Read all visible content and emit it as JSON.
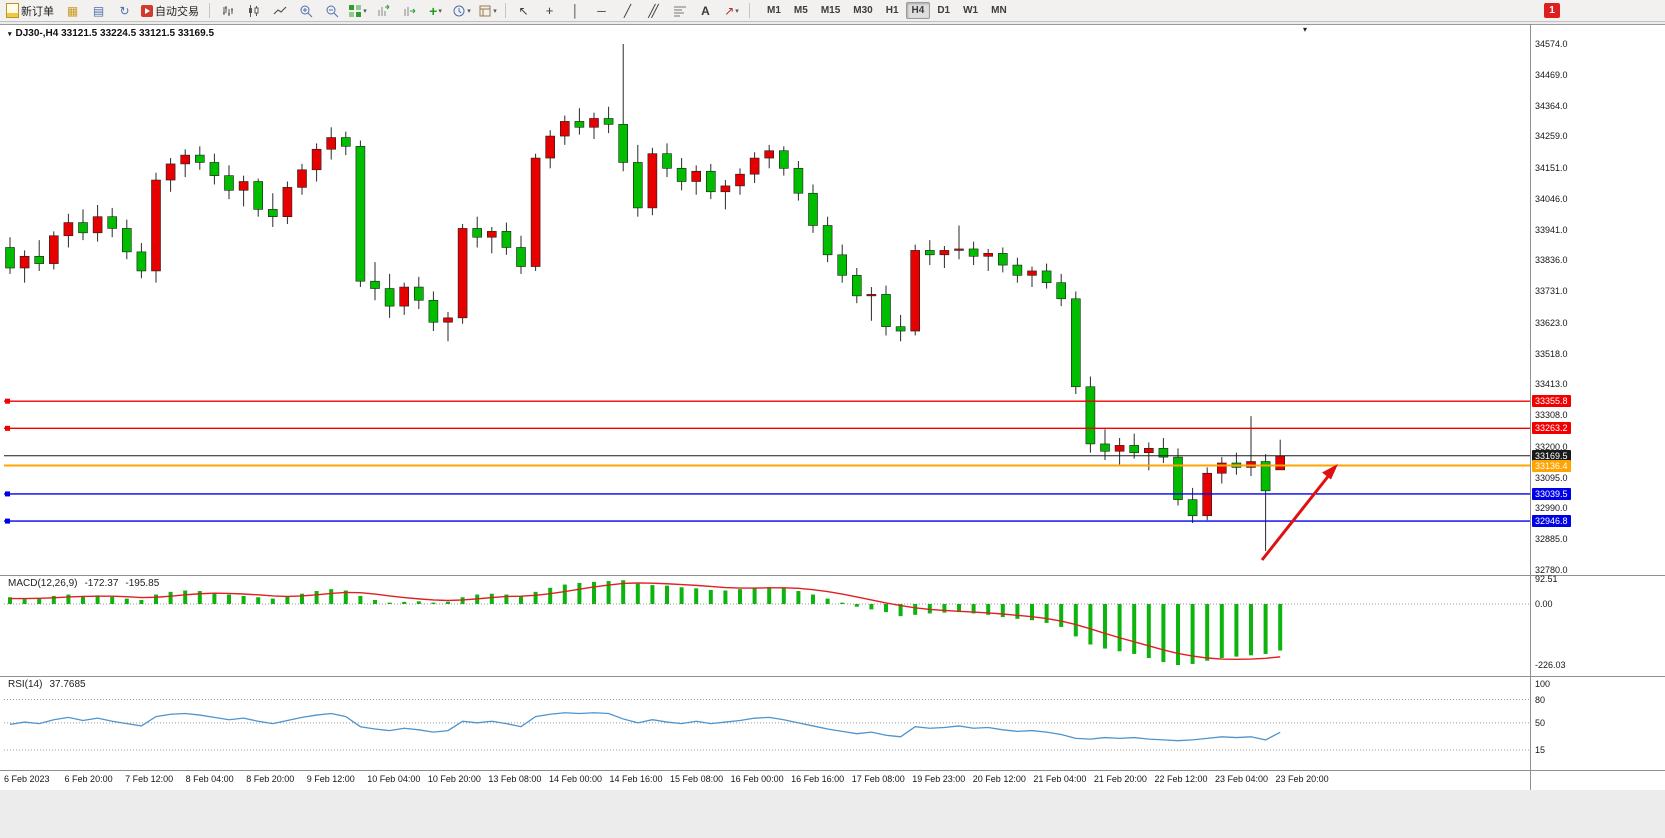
{
  "toolbar": {
    "new_order": "新订单",
    "autotrading": "自动交易",
    "timeframes": [
      "M1",
      "M5",
      "M15",
      "M30",
      "H1",
      "H4",
      "D1",
      "W1",
      "MN"
    ],
    "active_timeframe": "H4",
    "notification_badge": "1"
  },
  "chart_header": {
    "symbol_ohlc": "DJ30-,H4 33121.5 33224.5 33121.5 33169.5"
  },
  "price_axis": {
    "ticks": [
      "34574.0",
      "34469.0",
      "34364.0",
      "34259.0",
      "34151.0",
      "34046.0",
      "33941.0",
      "33836.0",
      "33731.0",
      "33623.0",
      "33518.0",
      "33413.0",
      "33308.0",
      "33200.0",
      "33095.0",
      "32990.0",
      "32885.0",
      "32780.0"
    ]
  },
  "price_lines": [
    {
      "label": "33355.8",
      "price": 33355.8,
      "color": "#f20000",
      "width": 1.4,
      "handles": true,
      "current": false
    },
    {
      "label": "33263.2",
      "price": 33263.2,
      "color": "#f20000",
      "width": 1.4,
      "handles": true,
      "current": false
    },
    {
      "label": "33169.5",
      "price": 33169.5,
      "color": "#1a1a1a",
      "width": 1,
      "handles": false,
      "current": true
    },
    {
      "label": "33136.4",
      "price": 33136.4,
      "color": "#ffa400",
      "width": 2,
      "handles": false,
      "current": false
    },
    {
      "label": "33039.5",
      "price": 33039.5,
      "color": "#0000e8",
      "width": 1.4,
      "handles": true,
      "current": false
    },
    {
      "label": "32946.8",
      "price": 32946.8,
      "color": "#0000e8",
      "width": 1.4,
      "handles": true,
      "current": false
    }
  ],
  "macd": {
    "name": "MACD(12,26,9)",
    "value_main": "-172.37",
    "value_signal": "-195.85",
    "axis": [
      "92.51",
      "0.00",
      "-226.03"
    ]
  },
  "rsi": {
    "name": "RSI(14)",
    "value": "37.7685",
    "axis": [
      "100",
      "80",
      "50",
      "15"
    ]
  },
  "time_axis": {
    "labels": [
      "6 Feb 2023",
      "6 Feb 20:00",
      "7 Feb 12:00",
      "8 Feb 04:00",
      "8 Feb 20:00",
      "9 Feb 12:00",
      "10 Feb 04:00",
      "10 Feb 20:00",
      "13 Feb 08:00",
      "14 Feb 00:00",
      "14 Feb 16:00",
      "15 Feb 08:00",
      "16 Feb 00:00",
      "16 Feb 16:00",
      "17 Feb 08:00",
      "19 Feb 23:00",
      "20 Feb 12:00",
      "21 Feb 04:00",
      "21 Feb 20:00",
      "22 Feb 12:00",
      "23 Feb 04:00",
      "23 Feb 20:00"
    ]
  },
  "annotation": {
    "type": "arrow",
    "color": "#e01010",
    "direction": "up-right"
  },
  "chart_data": {
    "type": "candlestick",
    "symbol": "DJ30-",
    "timeframe": "H4",
    "title": "DJ30-,H4",
    "ohlc_current": {
      "open": 33121.5,
      "high": 33224.5,
      "low": 33121.5,
      "close": 33169.5
    },
    "price_range": [
      32780.0,
      34574.0
    ],
    "up_color": "#e60000",
    "down_color": "#00bd00",
    "candles": [
      [
        33880,
        33915,
        33790,
        33810
      ],
      [
        33810,
        33870,
        33760,
        33850
      ],
      [
        33850,
        33905,
        33800,
        33825
      ],
      [
        33825,
        33935,
        33805,
        33920
      ],
      [
        33920,
        33995,
        33880,
        33965
      ],
      [
        33965,
        34010,
        33905,
        33930
      ],
      [
        33930,
        34025,
        33900,
        33985
      ],
      [
        33985,
        34015,
        33915,
        33945
      ],
      [
        33945,
        33975,
        33840,
        33865
      ],
      [
        33865,
        33895,
        33775,
        33800
      ],
      [
        33800,
        34135,
        33760,
        34110
      ],
      [
        34110,
        34185,
        34070,
        34165
      ],
      [
        34165,
        34215,
        34120,
        34195
      ],
      [
        34195,
        34225,
        34145,
        34170
      ],
      [
        34170,
        34200,
        34095,
        34125
      ],
      [
        34125,
        34160,
        34045,
        34075
      ],
      [
        34075,
        34125,
        34020,
        34105
      ],
      [
        34105,
        34115,
        33985,
        34010
      ],
      [
        34010,
        34065,
        33950,
        33985
      ],
      [
        33985,
        34105,
        33960,
        34085
      ],
      [
        34085,
        34165,
        34060,
        34145
      ],
      [
        34145,
        34235,
        34105,
        34215
      ],
      [
        34215,
        34290,
        34180,
        34255
      ],
      [
        34255,
        34275,
        34195,
        34225
      ],
      [
        34225,
        34245,
        33745,
        33765
      ],
      [
        33765,
        33830,
        33700,
        33740
      ],
      [
        33740,
        33790,
        33640,
        33680
      ],
      [
        33680,
        33760,
        33650,
        33745
      ],
      [
        33745,
        33780,
        33670,
        33700
      ],
      [
        33700,
        33730,
        33595,
        33625
      ],
      [
        33625,
        33660,
        33560,
        33640
      ],
      [
        33640,
        33960,
        33620,
        33945
      ],
      [
        33945,
        33985,
        33880,
        33915
      ],
      [
        33915,
        33950,
        33860,
        33935
      ],
      [
        33935,
        33965,
        33855,
        33880
      ],
      [
        33880,
        33920,
        33790,
        33815
      ],
      [
        33815,
        34200,
        33800,
        34185
      ],
      [
        34185,
        34280,
        34150,
        34260
      ],
      [
        34260,
        34330,
        34230,
        34310
      ],
      [
        34310,
        34355,
        34265,
        34290
      ],
      [
        34290,
        34340,
        34250,
        34320
      ],
      [
        34320,
        34360,
        34270,
        34300
      ],
      [
        34300,
        34574,
        34140,
        34170
      ],
      [
        34170,
        34230,
        33985,
        34015
      ],
      [
        34015,
        34220,
        33990,
        34200
      ],
      [
        34200,
        34235,
        34120,
        34150
      ],
      [
        34150,
        34185,
        34075,
        34105
      ],
      [
        34105,
        34160,
        34060,
        34140
      ],
      [
        34140,
        34165,
        34045,
        34070
      ],
      [
        34070,
        34110,
        34010,
        34090
      ],
      [
        34090,
        34150,
        34060,
        34130
      ],
      [
        34130,
        34205,
        34100,
        34185
      ],
      [
        34185,
        34230,
        34150,
        34210
      ],
      [
        34210,
        34225,
        34125,
        34150
      ],
      [
        34150,
        34175,
        34040,
        34065
      ],
      [
        34065,
        34095,
        33930,
        33955
      ],
      [
        33955,
        33985,
        33830,
        33855
      ],
      [
        33855,
        33890,
        33760,
        33785
      ],
      [
        33785,
        33810,
        33690,
        33715
      ],
      [
        33715,
        33745,
        33630,
        33720
      ],
      [
        33720,
        33750,
        33580,
        33610
      ],
      [
        33610,
        33650,
        33560,
        33595
      ],
      [
        33595,
        33890,
        33580,
        33870
      ],
      [
        33870,
        33905,
        33820,
        33855
      ],
      [
        33855,
        33885,
        33810,
        33870
      ],
      [
        33870,
        33955,
        33840,
        33875
      ],
      [
        33875,
        33900,
        33820,
        33850
      ],
      [
        33850,
        33875,
        33800,
        33860
      ],
      [
        33860,
        33880,
        33795,
        33820
      ],
      [
        33820,
        33845,
        33760,
        33785
      ],
      [
        33785,
        33815,
        33745,
        33800
      ],
      [
        33800,
        33825,
        33740,
        33760
      ],
      [
        33760,
        33790,
        33680,
        33705
      ],
      [
        33705,
        33730,
        33380,
        33405
      ],
      [
        33405,
        33440,
        33180,
        33210
      ],
      [
        33210,
        33260,
        33155,
        33185
      ],
      [
        33185,
        33230,
        33140,
        33205
      ],
      [
        33205,
        33245,
        33160,
        33180
      ],
      [
        33180,
        33215,
        33120,
        33195
      ],
      [
        33195,
        33230,
        33145,
        33165
      ],
      [
        33165,
        33195,
        33000,
        33020
      ],
      [
        33020,
        33060,
        32940,
        32965
      ],
      [
        32965,
        33130,
        32950,
        33110
      ],
      [
        33110,
        33165,
        33075,
        33145
      ],
      [
        33145,
        33180,
        33105,
        33130
      ],
      [
        33130,
        33305,
        33100,
        33150
      ],
      [
        33150,
        33175,
        32845,
        33050
      ],
      [
        33121.5,
        33224.5,
        33121.5,
        33169.5
      ]
    ],
    "macd": {
      "histogram": [
        25,
        18,
        22,
        30,
        35,
        28,
        32,
        26,
        20,
        15,
        35,
        45,
        50,
        48,
        42,
        35,
        30,
        25,
        20,
        28,
        38,
        48,
        55,
        50,
        30,
        15,
        5,
        8,
        10,
        5,
        8,
        25,
        35,
        38,
        35,
        28,
        45,
        60,
        72,
        78,
        82,
        85,
        88,
        75,
        70,
        68,
        62,
        58,
        52,
        50,
        55,
        60,
        62,
        58,
        48,
        35,
        20,
        5,
        -10,
        -20,
        -30,
        -45,
        -40,
        -35,
        -32,
        -30,
        -35,
        -40,
        -48,
        -55,
        -60,
        -70,
        -85,
        -120,
        -150,
        -165,
        -175,
        -185,
        -200,
        -215,
        -226,
        -222,
        -210,
        -200,
        -195,
        -190,
        -185,
        -172.37
      ],
      "signal": [
        20,
        20,
        21,
        23,
        26,
        28,
        29,
        29,
        27,
        24,
        25,
        29,
        34,
        38,
        40,
        39,
        37,
        34,
        30,
        28,
        30,
        34,
        39,
        43,
        42,
        37,
        30,
        24,
        19,
        15,
        13,
        15,
        19,
        24,
        28,
        29,
        32,
        38,
        46,
        55,
        63,
        70,
        76,
        78,
        77,
        75,
        72,
        69,
        65,
        61,
        59,
        59,
        60,
        60,
        58,
        53,
        46,
        37,
        26,
        15,
        4,
        -6,
        -14,
        -20,
        -24,
        -27,
        -30,
        -33,
        -37,
        -42,
        -47,
        -54,
        -63,
        -76,
        -92,
        -109,
        -125,
        -140,
        -155,
        -170,
        -183,
        -193,
        -200,
        -204,
        -205,
        -204,
        -201,
        -195.85
      ],
      "range": [
        -226.03,
        92.51
      ]
    },
    "rsi": {
      "values": [
        48,
        51,
        49,
        54,
        57,
        53,
        56,
        52,
        49,
        46,
        58,
        61,
        62,
        60,
        57,
        54,
        56,
        52,
        49,
        53,
        57,
        60,
        62,
        58,
        45,
        42,
        40,
        43,
        41,
        38,
        40,
        52,
        50,
        52,
        49,
        45,
        58,
        61,
        63,
        62,
        63,
        62,
        55,
        50,
        54,
        51,
        49,
        52,
        49,
        51,
        53,
        56,
        57,
        54,
        50,
        46,
        42,
        39,
        36,
        38,
        34,
        32,
        45,
        43,
        44,
        46,
        43,
        44,
        41,
        39,
        40,
        38,
        35,
        30,
        29,
        31,
        30,
        31,
        29,
        28,
        27,
        28,
        30,
        32,
        31,
        32,
        28,
        37.77
      ],
      "levels": [
        80,
        50,
        15
      ],
      "current": 37.7685
    }
  }
}
